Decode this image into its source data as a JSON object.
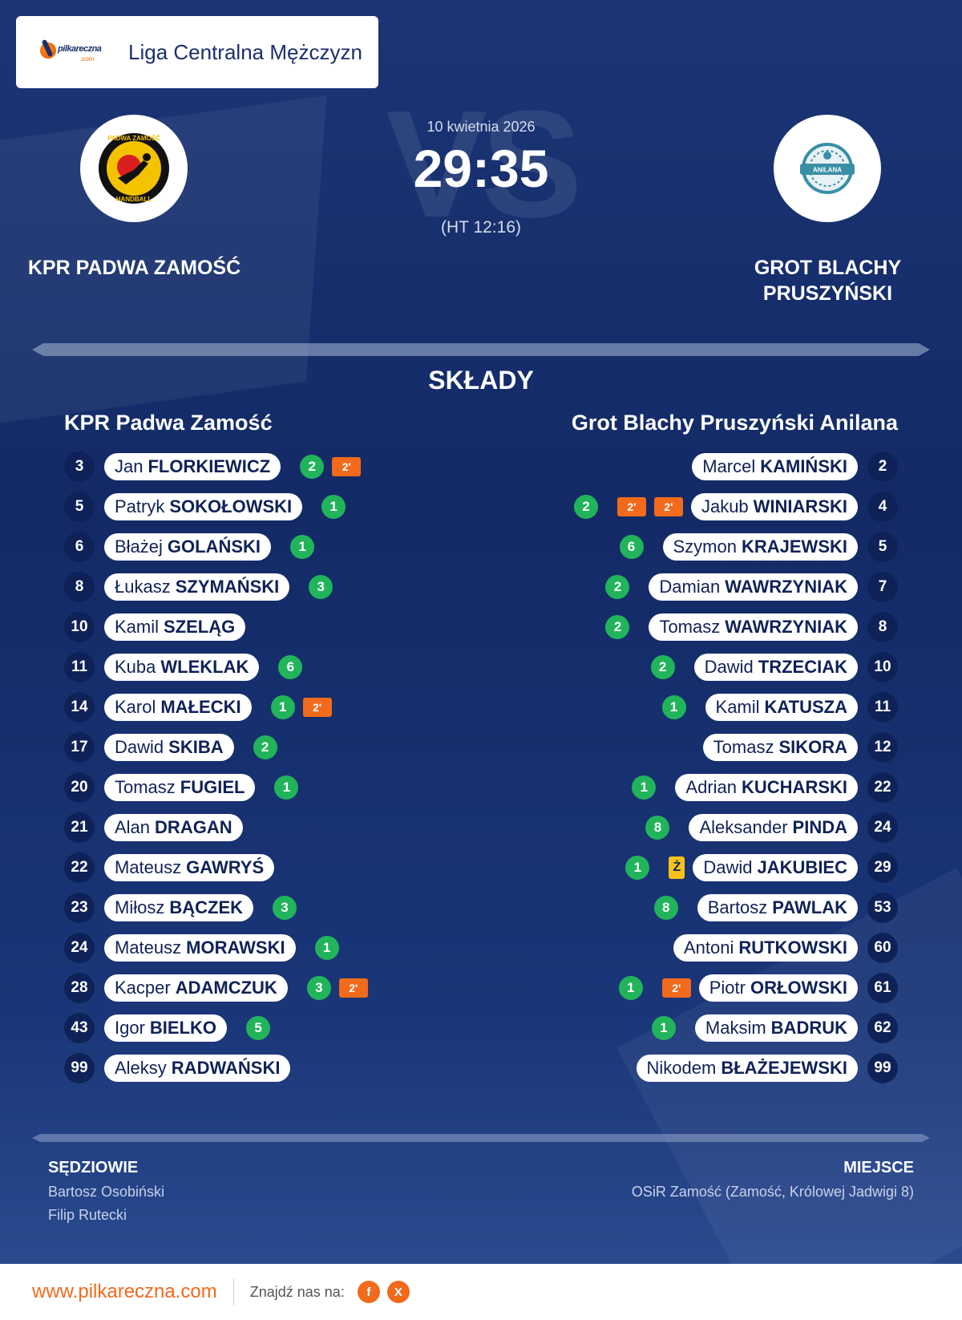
{
  "header": {
    "logo_text": "pilkareczna",
    "logo_sub": ".com",
    "league": "Liga Centralna Mężczyzn"
  },
  "match": {
    "date": "10 kwietnia 2026",
    "score": "29:35",
    "halftime": "(HT 12:16)",
    "vs_text": "VS"
  },
  "home_team": {
    "name": "KPR PADWA ZAMOŚĆ",
    "logo_text_top": "PADWA ZAMOŚĆ",
    "logo_text_bottom": "HANDBALL"
  },
  "away_team": {
    "name_line1": "GROT BLACHY",
    "name_line2": "PRUSZYŃSKI",
    "logo_text": "ANILANA"
  },
  "lineups": {
    "title": "SKŁADY",
    "home_title": "KPR Padwa Zamość",
    "away_title": "Grot Blachy Pruszyński Anilana",
    "colors": {
      "goal": "#21b45b",
      "penalty": "#f26a1b",
      "yellow": "#f6c21a",
      "number_bg": "#0f2258"
    },
    "home": [
      {
        "number": "3",
        "first": "Jan",
        "last": "FLORKIEWICZ",
        "goals": "2",
        "events": [
          "2'"
        ]
      },
      {
        "number": "5",
        "first": "Patryk",
        "last": "SOKOŁOWSKI",
        "goals": "1",
        "events": []
      },
      {
        "number": "6",
        "first": "Błażej",
        "last": "GOLAŃSKI",
        "goals": "1",
        "events": []
      },
      {
        "number": "8",
        "first": "Łukasz",
        "last": "SZYMAŃSKI",
        "goals": "3",
        "events": []
      },
      {
        "number": "10",
        "first": "Kamil",
        "last": "SZELĄG",
        "goals": "",
        "events": []
      },
      {
        "number": "11",
        "first": "Kuba",
        "last": "WLEKLAK",
        "goals": "6",
        "events": []
      },
      {
        "number": "14",
        "first": "Karol",
        "last": "MAŁECKI",
        "goals": "1",
        "events": [
          "2'"
        ]
      },
      {
        "number": "17",
        "first": "Dawid",
        "last": "SKIBA",
        "goals": "2",
        "events": []
      },
      {
        "number": "20",
        "first": "Tomasz",
        "last": "FUGIEL",
        "goals": "1",
        "events": []
      },
      {
        "number": "21",
        "first": "Alan",
        "last": "DRAGAN",
        "goals": "",
        "events": []
      },
      {
        "number": "22",
        "first": "Mateusz",
        "last": "GAWRYŚ",
        "goals": "",
        "events": []
      },
      {
        "number": "23",
        "first": "Miłosz",
        "last": "BĄCZEK",
        "goals": "3",
        "events": []
      },
      {
        "number": "24",
        "first": "Mateusz",
        "last": "MORAWSKI",
        "goals": "1",
        "events": []
      },
      {
        "number": "28",
        "first": "Kacper",
        "last": "ADAMCZUK",
        "goals": "3",
        "events": [
          "2'"
        ]
      },
      {
        "number": "43",
        "first": "Igor",
        "last": "BIELKO",
        "goals": "5",
        "events": []
      },
      {
        "number": "99",
        "first": "Aleksy",
        "last": "RADWAŃSKI",
        "goals": "",
        "events": []
      }
    ],
    "away": [
      {
        "number": "2",
        "first": "Marcel",
        "last": "KAMIŃSKI",
        "goals": "",
        "events": []
      },
      {
        "number": "4",
        "first": "Jakub",
        "last": "WINIARSKI",
        "goals": "2",
        "events": [
          "2'",
          "2'"
        ]
      },
      {
        "number": "5",
        "first": "Szymon",
        "last": "KRAJEWSKI",
        "goals": "6",
        "events": []
      },
      {
        "number": "7",
        "first": "Damian",
        "last": "WAWRZYNIAK",
        "goals": "2",
        "events": []
      },
      {
        "number": "8",
        "first": "Tomasz",
        "last": "WAWRZYNIAK",
        "goals": "2",
        "events": []
      },
      {
        "number": "10",
        "first": "Dawid",
        "last": "TRZECIAK",
        "goals": "2",
        "events": []
      },
      {
        "number": "11",
        "first": "Kamil",
        "last": "KATUSZA",
        "goals": "1",
        "events": []
      },
      {
        "number": "12",
        "first": "Tomasz",
        "last": "SIKORA",
        "goals": "",
        "events": []
      },
      {
        "number": "22",
        "first": "Adrian",
        "last": "KUCHARSKI",
        "goals": "1",
        "events": []
      },
      {
        "number": "24",
        "first": "Aleksander",
        "last": "PINDA",
        "goals": "8",
        "events": []
      },
      {
        "number": "29",
        "first": "Dawid",
        "last": "JAKUBIEC",
        "goals": "1",
        "events": [
          "Ż"
        ]
      },
      {
        "number": "53",
        "first": "Bartosz",
        "last": "PAWLAK",
        "goals": "8",
        "events": []
      },
      {
        "number": "60",
        "first": "Antoni",
        "last": "RUTKOWSKI",
        "goals": "",
        "events": []
      },
      {
        "number": "61",
        "first": "Piotr",
        "last": "ORŁOWSKI",
        "goals": "1",
        "events": [
          "2'"
        ]
      },
      {
        "number": "62",
        "first": "Maksim",
        "last": "BADRUK",
        "goals": "1",
        "events": []
      },
      {
        "number": "99",
        "first": "Nikodem",
        "last": "BŁAŻEJEWSKI",
        "goals": "",
        "events": []
      }
    ]
  },
  "referees": {
    "title": "SĘDZIOWIE",
    "names": [
      "Bartosz Osobiński",
      "Filip Rutecki"
    ]
  },
  "venue": {
    "title": "MIEJSCE",
    "value": "OSiR Zamość (Zamość, Królowej Jadwigi 8)"
  },
  "footer": {
    "site": "www.pilkareczna.com",
    "find_us": "Znajdź nas na:",
    "social": [
      {
        "icon": "facebook-icon",
        "glyph": "f"
      },
      {
        "icon": "x-icon",
        "glyph": "X"
      }
    ]
  }
}
